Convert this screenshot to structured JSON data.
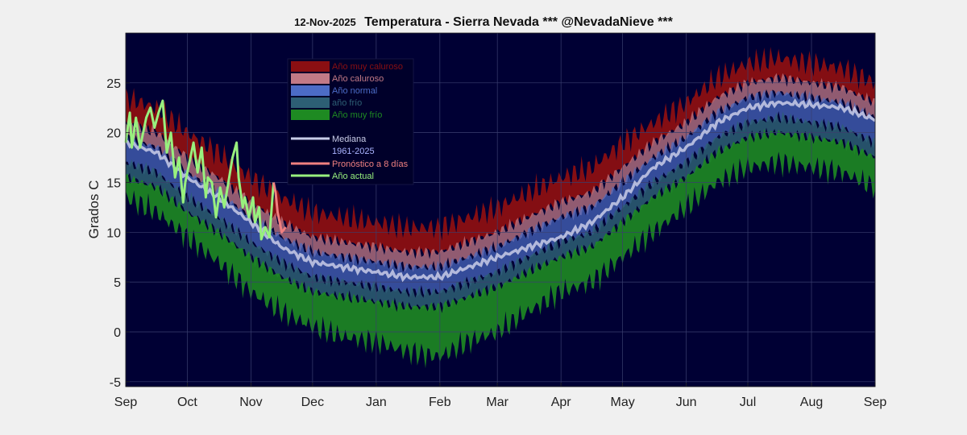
{
  "header": {
    "date": "12-Nov-2025",
    "title": "Temperatura - Sierra Nevada  *** @NevadaNieve ***"
  },
  "colors": {
    "plot_bg": "#000034",
    "muy_caluroso": "#8b0f12",
    "caluroso": "#c27a86",
    "normal": "#4c6cc6",
    "frio": "#2d5f74",
    "muy_frio": "#1e8a22",
    "mediana": "#c9cde8",
    "pronostico": "#f08080",
    "actual": "#98f07e"
  },
  "chart_data": {
    "type": "area",
    "title": "Temperatura - Sierra Nevada  *** @NevadaNieve ***",
    "ylabel": "Grados C",
    "xlabel": "",
    "ylim": [
      -5.5,
      30
    ],
    "yticks": [
      -5,
      0,
      5,
      10,
      15,
      20,
      25
    ],
    "grid": true,
    "x_unit": "day_of_season_from_1_Sep",
    "xlim": [
      0,
      365
    ],
    "xticks": [
      {
        "label": "Sep",
        "day": 0
      },
      {
        "label": "Oct",
        "day": 30
      },
      {
        "label": "Nov",
        "day": 61
      },
      {
        "label": "Dec",
        "day": 91
      },
      {
        "label": "Jan",
        "day": 122
      },
      {
        "label": "Feb",
        "day": 153
      },
      {
        "label": "Mar",
        "day": 181
      },
      {
        "label": "Apr",
        "day": 212
      },
      {
        "label": "May",
        "day": 242
      },
      {
        "label": "Jun",
        "day": 273
      },
      {
        "label": "Jul",
        "day": 303
      },
      {
        "label": "Aug",
        "day": 334
      },
      {
        "label": "Sep",
        "day": 365
      }
    ],
    "legend": {
      "placement": "upper-left",
      "entries": [
        {
          "label": "Año muy caluroso",
          "kind": "patch",
          "color": "#8b0f12"
        },
        {
          "label": "Año caluroso",
          "kind": "patch",
          "color": "#c27a86"
        },
        {
          "label": "Año normal",
          "kind": "patch",
          "color": "#4c6cc6"
        },
        {
          "label": "año frío",
          "kind": "patch",
          "color": "#2d5f74"
        },
        {
          "label": "Año muy frío",
          "kind": "patch",
          "color": "#1e8a22"
        },
        {
          "label": "Mediana",
          "kind": "line",
          "color": "#c9cde8"
        },
        {
          "label": "1961-2025",
          "kind": "none",
          "color": "#aab4ff"
        },
        {
          "label": "Pronóstico a 8 días",
          "kind": "line",
          "color": "#f08080"
        },
        {
          "label": "Año actual",
          "kind": "line",
          "color": "#98f07e"
        }
      ]
    },
    "climatology": {
      "days": [
        0,
        15,
        30,
        45,
        61,
        76,
        91,
        106,
        122,
        137,
        153,
        167,
        181,
        196,
        212,
        227,
        242,
        257,
        273,
        288,
        303,
        318,
        334,
        349,
        365
      ],
      "max": [
        23.5,
        22.5,
        20.0,
        18.0,
        15.5,
        13.5,
        12.0,
        11.5,
        11.0,
        10.5,
        10.5,
        11.5,
        12.5,
        14.0,
        15.5,
        16.5,
        19.0,
        21.0,
        23.0,
        25.5,
        27.0,
        27.5,
        27.0,
        26.5,
        25.0
      ],
      "caluroso": [
        21.0,
        20.0,
        17.5,
        15.5,
        13.0,
        11.0,
        9.5,
        9.0,
        8.5,
        8.0,
        8.0,
        9.0,
        10.0,
        11.5,
        13.0,
        14.0,
        16.5,
        19.0,
        21.0,
        23.5,
        25.0,
        25.5,
        25.0,
        24.5,
        23.0
      ],
      "normal_hi": [
        19.5,
        18.5,
        16.0,
        14.0,
        11.5,
        9.5,
        8.0,
        7.5,
        7.0,
        6.5,
        6.5,
        7.5,
        8.5,
        10.0,
        11.5,
        12.5,
        15.0,
        17.5,
        19.5,
        22.0,
        23.5,
        24.0,
        23.5,
        23.0,
        21.5
      ],
      "normal_lo": [
        17.0,
        16.0,
        13.5,
        11.5,
        9.0,
        7.0,
        5.5,
        5.0,
        4.5,
        4.0,
        4.0,
        5.0,
        6.0,
        7.5,
        9.0,
        10.0,
        12.5,
        15.0,
        17.0,
        19.5,
        21.0,
        21.5,
        21.0,
        20.5,
        19.0
      ],
      "frio": [
        15.5,
        14.5,
        12.0,
        10.0,
        7.5,
        5.5,
        4.0,
        3.5,
        3.0,
        2.5,
        2.5,
        3.5,
        4.5,
        6.0,
        7.5,
        8.5,
        11.0,
        13.5,
        15.5,
        18.0,
        19.5,
        20.0,
        19.5,
        19.0,
        17.5
      ],
      "min": [
        13.5,
        12.0,
        9.5,
        7.0,
        4.0,
        2.0,
        0.5,
        -0.5,
        -1.0,
        -2.0,
        -2.5,
        -1.0,
        0.0,
        2.0,
        4.0,
        5.0,
        7.5,
        10.0,
        12.5,
        15.0,
        16.5,
        17.0,
        16.5,
        16.0,
        14.5
      ],
      "mediana": [
        19.0,
        18.0,
        15.5,
        13.5,
        11.0,
        8.5,
        7.0,
        6.5,
        6.0,
        5.5,
        5.5,
        6.5,
        7.5,
        8.5,
        9.5,
        11.0,
        13.5,
        16.5,
        18.5,
        21.0,
        22.5,
        23.0,
        22.8,
        22.5,
        21.3
      ]
    },
    "series": [
      {
        "name": "Año actual",
        "x": [
          0,
          2,
          3,
          5,
          7,
          10,
          12,
          14,
          16,
          18,
          20,
          22,
          24,
          26,
          28,
          29,
          31,
          33,
          35,
          37,
          39,
          40,
          42,
          44,
          46,
          48,
          50,
          52,
          54,
          55,
          57,
          58,
          60,
          62,
          63,
          65,
          66,
          68,
          70,
          72
        ],
        "y": [
          19.0,
          22.0,
          18.5,
          21.5,
          18.5,
          21.5,
          22.5,
          20.5,
          22.0,
          23.2,
          18.0,
          20.0,
          15.5,
          17.5,
          13.0,
          15.0,
          17.0,
          19.0,
          16.0,
          18.5,
          13.5,
          15.5,
          15.0,
          11.5,
          14.5,
          12.5,
          15.0,
          17.5,
          19.0,
          15.5,
          12.5,
          13.5,
          11.5,
          13.5,
          11.0,
          12.5,
          9.3,
          10.5,
          9.5,
          15.0
        ]
      },
      {
        "name": "Pronóstico a 8 días",
        "x": [
          72,
          73,
          74,
          75,
          76,
          78
        ],
        "y": [
          15.0,
          14.0,
          12.0,
          11.0,
          10.0,
          10.5
        ]
      }
    ]
  }
}
